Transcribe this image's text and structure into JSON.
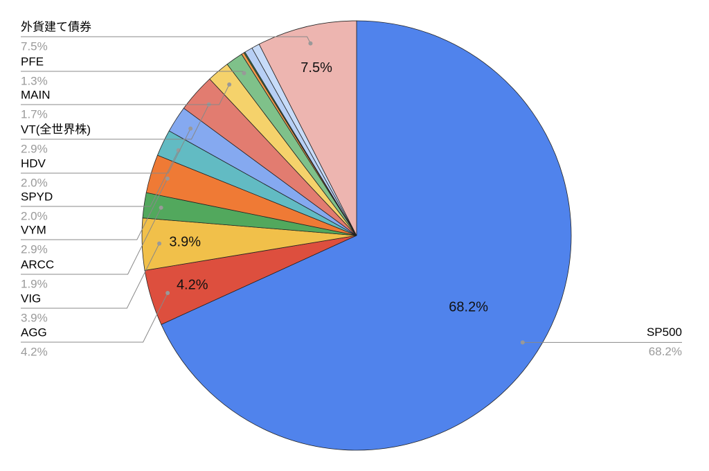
{
  "chart_data": {
    "type": "pie",
    "categories": [
      "SP500",
      "AGG",
      "VIG",
      "ARCC",
      "VYM",
      "SPYD",
      "HDV",
      "VT(全世界株)",
      "MAIN",
      "PFE",
      null,
      null,
      null,
      null,
      "外貨建て債券"
    ],
    "values": [
      68.2,
      4.2,
      3.9,
      1.9,
      2.9,
      2.0,
      2.0,
      2.9,
      1.7,
      1.3,
      0.2,
      0.1,
      0.6,
      0.6,
      7.5
    ],
    "value_labels": [
      "68.2%",
      "4.2%",
      "3.9%",
      "1.9%",
      "2.9%",
      "2.0%",
      "2.0%",
      "2.9%",
      "1.7%",
      "1.3%",
      null,
      null,
      null,
      null,
      "7.5%"
    ],
    "colors": [
      "#5083ec",
      "#dd4f3e",
      "#f1c04a",
      "#52a85d",
      "#ef7a35",
      "#62bbc3",
      "#85a9f0",
      "#e27c70",
      "#f5d26b",
      "#7fc18a",
      "#f29a4a",
      "#3f7d50",
      "#b7cff5",
      "#c7dbf8",
      "#edb5b0"
    ]
  }
}
